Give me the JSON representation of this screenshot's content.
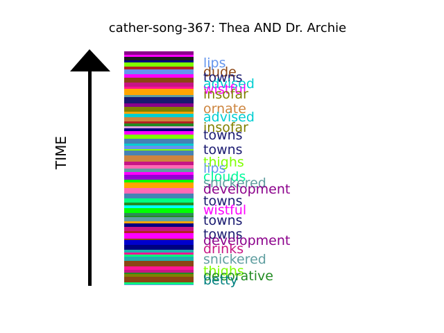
{
  "chart_data": {
    "type": "bar",
    "title": "cather-song-367: Thea AND Dr. Archie",
    "ylabel": "TIME",
    "arrow_label": "TIME",
    "stripe_colors": [
      "#00ff7f",
      "#ff1493",
      "#6495ed",
      "#9400d3",
      "#8b4513",
      "#191970",
      "#00ced1",
      "#ff00ff",
      "#808000",
      "#cd853f",
      "#228b22",
      "#00ffff",
      "#7fff00",
      "#5f9ea0",
      "#c71585",
      "#1a1a1a",
      "#8b008b",
      "#008080",
      "#ff6347",
      "#4682b4",
      "#0000cd",
      "#ffff00",
      "#00ff00",
      "#b22222",
      "#20b2aa",
      "#ff69b4",
      "#000080",
      "#dda0dd",
      "#2e8b57",
      "#ffa500"
    ],
    "labels": [
      {
        "text": "lips",
        "color": "#6495ed"
      },
      {
        "text": "dude",
        "color": "#8b4513"
      },
      {
        "text": "towns",
        "color": "#191970"
      },
      {
        "text": "advised",
        "color": "#00ced1"
      },
      {
        "text": "wistful",
        "color": "#ff00ff"
      },
      {
        "text": "insofar",
        "color": "#808000"
      },
      {
        "text": "ornate",
        "color": "#cd853f"
      },
      {
        "text": "advised",
        "color": "#00ced1"
      },
      {
        "text": "insofar",
        "color": "#808000"
      },
      {
        "text": "towns",
        "color": "#191970"
      },
      {
        "text": "towns",
        "color": "#191970"
      },
      {
        "text": "thighs",
        "color": "#7fff00"
      },
      {
        "text": "lips",
        "color": "#6495ed"
      },
      {
        "text": "clouds",
        "color": "#00fa9a"
      },
      {
        "text": "snickered",
        "color": "#5f9ea0"
      },
      {
        "text": "development",
        "color": "#8b008b"
      },
      {
        "text": "towns",
        "color": "#191970"
      },
      {
        "text": "wistful",
        "color": "#ff00ff"
      },
      {
        "text": "towns",
        "color": "#191970"
      },
      {
        "text": "towns",
        "color": "#191970"
      },
      {
        "text": "development",
        "color": "#8b008b"
      },
      {
        "text": "drinks",
        "color": "#c71585"
      },
      {
        "text": "snickered",
        "color": "#5f9ea0"
      },
      {
        "text": "thighs",
        "color": "#7fff00"
      },
      {
        "text": "decorative",
        "color": "#228b22"
      },
      {
        "text": "betty",
        "color": "#008080"
      }
    ]
  }
}
